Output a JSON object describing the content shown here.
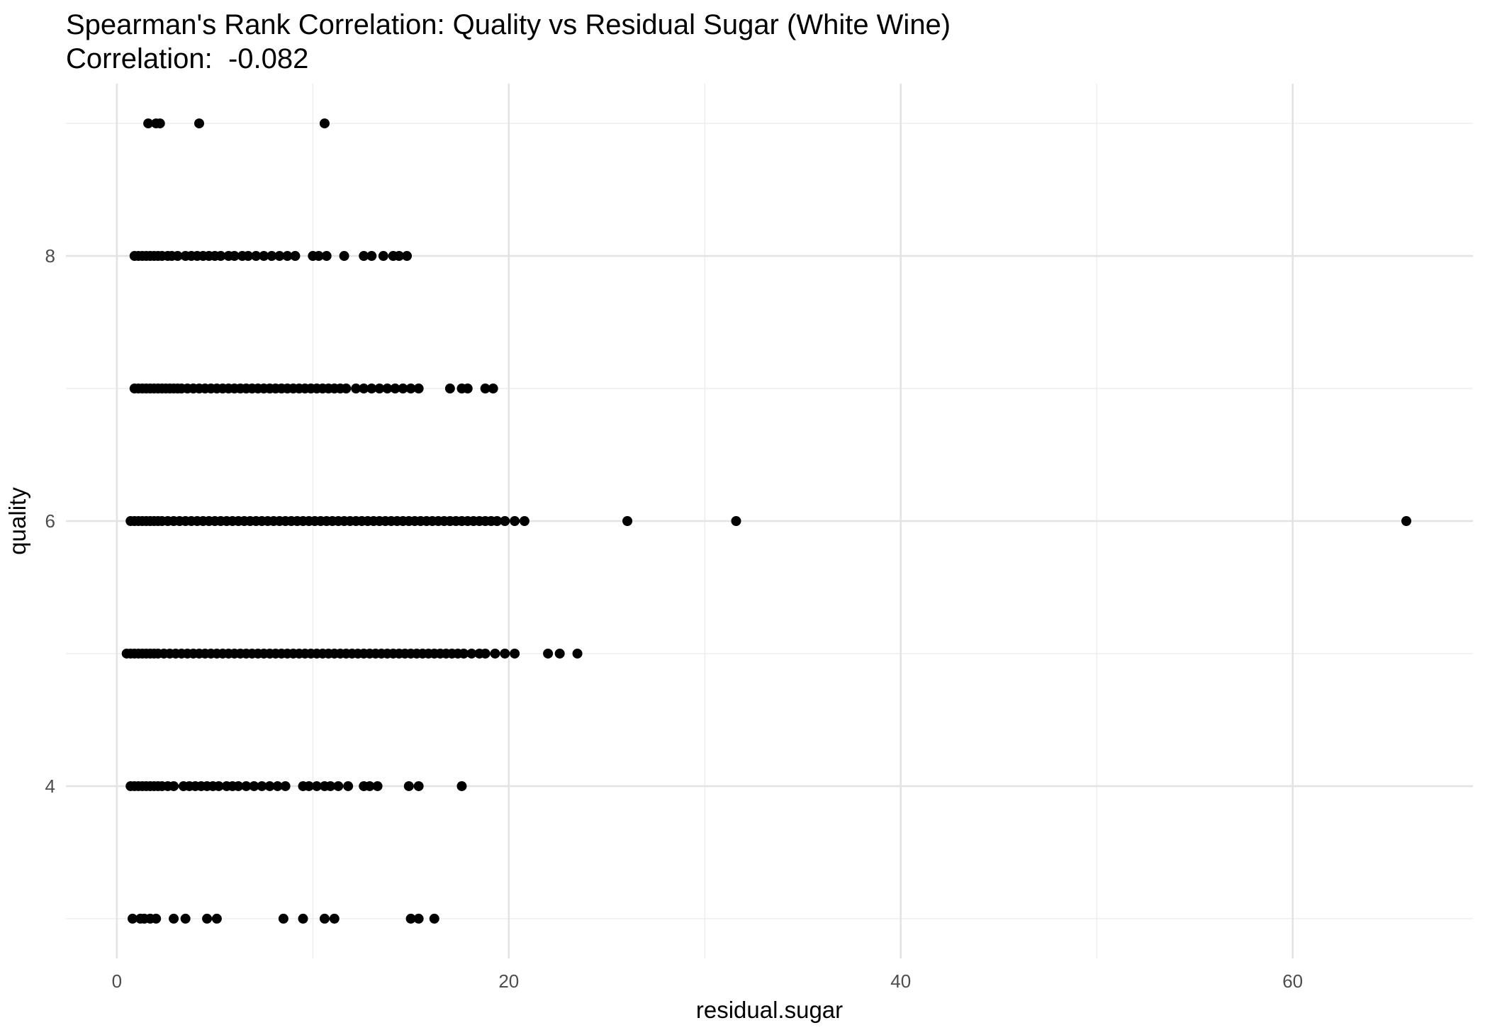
{
  "chart_data": {
    "type": "scatter",
    "title": "Spearman's Rank Correlation: Quality vs Residual Sugar (White Wine)",
    "subtitle": "Correlation:  -0.082",
    "xlabel": "residual.sugar",
    "ylabel": "quality",
    "xlim": [
      -2.6,
      69.2
    ],
    "ylim": [
      2.7,
      9.3
    ],
    "x_ticks": [
      0,
      20,
      40,
      60
    ],
    "y_ticks": [
      4,
      6,
      8
    ],
    "x_minor_ticks": [
      10,
      30,
      50
    ],
    "y_minor_ticks": [
      3,
      5,
      7,
      9
    ],
    "grid": true,
    "point_color": "#000000",
    "series": [
      {
        "points": [
          [
            1.6,
            9
          ],
          [
            2.0,
            9
          ],
          [
            2.2,
            9
          ],
          [
            4.2,
            9
          ],
          [
            10.6,
            9
          ],
          [
            0.9,
            8
          ],
          [
            1.1,
            8
          ],
          [
            1.3,
            8
          ],
          [
            1.5,
            8
          ],
          [
            1.7,
            8
          ],
          [
            1.9,
            8
          ],
          [
            2.1,
            8
          ],
          [
            2.3,
            8
          ],
          [
            2.6,
            8
          ],
          [
            2.8,
            8
          ],
          [
            3.1,
            8
          ],
          [
            3.5,
            8
          ],
          [
            3.8,
            8
          ],
          [
            4.1,
            8
          ],
          [
            4.4,
            8
          ],
          [
            4.7,
            8
          ],
          [
            5.0,
            8
          ],
          [
            5.3,
            8
          ],
          [
            5.7,
            8
          ],
          [
            6.0,
            8
          ],
          [
            6.4,
            8
          ],
          [
            6.7,
            8
          ],
          [
            7.1,
            8
          ],
          [
            7.5,
            8
          ],
          [
            7.9,
            8
          ],
          [
            8.3,
            8
          ],
          [
            8.7,
            8
          ],
          [
            9.1,
            8
          ],
          [
            10.0,
            8
          ],
          [
            10.3,
            8
          ],
          [
            10.7,
            8
          ],
          [
            11.6,
            8
          ],
          [
            12.6,
            8
          ],
          [
            13.0,
            8
          ],
          [
            13.6,
            8
          ],
          [
            14.1,
            8
          ],
          [
            14.4,
            8
          ],
          [
            14.8,
            8
          ],
          [
            0.9,
            7
          ],
          [
            1.1,
            7
          ],
          [
            1.3,
            7
          ],
          [
            1.5,
            7
          ],
          [
            1.7,
            7
          ],
          [
            1.9,
            7
          ],
          [
            2.1,
            7
          ],
          [
            2.3,
            7
          ],
          [
            2.5,
            7
          ],
          [
            2.7,
            7
          ],
          [
            2.9,
            7
          ],
          [
            3.1,
            7
          ],
          [
            3.3,
            7
          ],
          [
            3.6,
            7
          ],
          [
            3.9,
            7
          ],
          [
            4.2,
            7
          ],
          [
            4.5,
            7
          ],
          [
            4.8,
            7
          ],
          [
            5.1,
            7
          ],
          [
            5.4,
            7
          ],
          [
            5.7,
            7
          ],
          [
            6.0,
            7
          ],
          [
            6.3,
            7
          ],
          [
            6.6,
            7
          ],
          [
            6.9,
            7
          ],
          [
            7.2,
            7
          ],
          [
            7.5,
            7
          ],
          [
            7.8,
            7
          ],
          [
            8.1,
            7
          ],
          [
            8.4,
            7
          ],
          [
            8.7,
            7
          ],
          [
            9.0,
            7
          ],
          [
            9.3,
            7
          ],
          [
            9.6,
            7
          ],
          [
            9.9,
            7
          ],
          [
            10.2,
            7
          ],
          [
            10.5,
            7
          ],
          [
            10.8,
            7
          ],
          [
            11.1,
            7
          ],
          [
            11.4,
            7
          ],
          [
            11.7,
            7
          ],
          [
            12.2,
            7
          ],
          [
            12.6,
            7
          ],
          [
            13.0,
            7
          ],
          [
            13.4,
            7
          ],
          [
            13.8,
            7
          ],
          [
            14.2,
            7
          ],
          [
            14.6,
            7
          ],
          [
            15.0,
            7
          ],
          [
            15.4,
            7
          ],
          [
            17.0,
            7
          ],
          [
            17.6,
            7
          ],
          [
            17.9,
            7
          ],
          [
            18.8,
            7
          ],
          [
            19.2,
            7
          ],
          [
            0.7,
            6
          ],
          [
            0.9,
            6
          ],
          [
            1.1,
            6
          ],
          [
            1.3,
            6
          ],
          [
            1.5,
            6
          ],
          [
            1.7,
            6
          ],
          [
            1.9,
            6
          ],
          [
            2.1,
            6
          ],
          [
            2.3,
            6
          ],
          [
            2.6,
            6
          ],
          [
            2.9,
            6
          ],
          [
            3.2,
            6
          ],
          [
            3.5,
            6
          ],
          [
            3.8,
            6
          ],
          [
            4.1,
            6
          ],
          [
            4.4,
            6
          ],
          [
            4.7,
            6
          ],
          [
            5.0,
            6
          ],
          [
            5.3,
            6
          ],
          [
            5.6,
            6
          ],
          [
            5.9,
            6
          ],
          [
            6.2,
            6
          ],
          [
            6.5,
            6
          ],
          [
            6.8,
            6
          ],
          [
            7.1,
            6
          ],
          [
            7.4,
            6
          ],
          [
            7.7,
            6
          ],
          [
            8.0,
            6
          ],
          [
            8.3,
            6
          ],
          [
            8.6,
            6
          ],
          [
            8.9,
            6
          ],
          [
            9.2,
            6
          ],
          [
            9.5,
            6
          ],
          [
            9.8,
            6
          ],
          [
            10.1,
            6
          ],
          [
            10.4,
            6
          ],
          [
            10.7,
            6
          ],
          [
            11.0,
            6
          ],
          [
            11.3,
            6
          ],
          [
            11.6,
            6
          ],
          [
            11.9,
            6
          ],
          [
            12.2,
            6
          ],
          [
            12.5,
            6
          ],
          [
            12.8,
            6
          ],
          [
            13.1,
            6
          ],
          [
            13.4,
            6
          ],
          [
            13.7,
            6
          ],
          [
            14.0,
            6
          ],
          [
            14.3,
            6
          ],
          [
            14.6,
            6
          ],
          [
            14.9,
            6
          ],
          [
            15.2,
            6
          ],
          [
            15.5,
            6
          ],
          [
            15.8,
            6
          ],
          [
            16.1,
            6
          ],
          [
            16.4,
            6
          ],
          [
            16.7,
            6
          ],
          [
            17.0,
            6
          ],
          [
            17.3,
            6
          ],
          [
            17.6,
            6
          ],
          [
            17.9,
            6
          ],
          [
            18.2,
            6
          ],
          [
            18.5,
            6
          ],
          [
            18.8,
            6
          ],
          [
            19.1,
            6
          ],
          [
            19.4,
            6
          ],
          [
            19.8,
            6
          ],
          [
            20.3,
            6
          ],
          [
            20.8,
            6
          ],
          [
            26.05,
            6
          ],
          [
            31.6,
            6
          ],
          [
            65.8,
            6
          ],
          [
            0.5,
            5
          ],
          [
            0.7,
            5
          ],
          [
            0.9,
            5
          ],
          [
            1.1,
            5
          ],
          [
            1.3,
            5
          ],
          [
            1.5,
            5
          ],
          [
            1.7,
            5
          ],
          [
            1.9,
            5
          ],
          [
            2.1,
            5
          ],
          [
            2.4,
            5
          ],
          [
            2.7,
            5
          ],
          [
            3.0,
            5
          ],
          [
            3.3,
            5
          ],
          [
            3.6,
            5
          ],
          [
            3.9,
            5
          ],
          [
            4.2,
            5
          ],
          [
            4.5,
            5
          ],
          [
            4.8,
            5
          ],
          [
            5.1,
            5
          ],
          [
            5.4,
            5
          ],
          [
            5.7,
            5
          ],
          [
            6.0,
            5
          ],
          [
            6.3,
            5
          ],
          [
            6.6,
            5
          ],
          [
            6.9,
            5
          ],
          [
            7.2,
            5
          ],
          [
            7.5,
            5
          ],
          [
            7.8,
            5
          ],
          [
            8.1,
            5
          ],
          [
            8.4,
            5
          ],
          [
            8.7,
            5
          ],
          [
            9.0,
            5
          ],
          [
            9.3,
            5
          ],
          [
            9.6,
            5
          ],
          [
            9.9,
            5
          ],
          [
            10.2,
            5
          ],
          [
            10.5,
            5
          ],
          [
            10.8,
            5
          ],
          [
            11.1,
            5
          ],
          [
            11.4,
            5
          ],
          [
            11.7,
            5
          ],
          [
            12.0,
            5
          ],
          [
            12.3,
            5
          ],
          [
            12.6,
            5
          ],
          [
            12.9,
            5
          ],
          [
            13.2,
            5
          ],
          [
            13.5,
            5
          ],
          [
            13.8,
            5
          ],
          [
            14.1,
            5
          ],
          [
            14.4,
            5
          ],
          [
            14.7,
            5
          ],
          [
            15.0,
            5
          ],
          [
            15.3,
            5
          ],
          [
            15.6,
            5
          ],
          [
            15.9,
            5
          ],
          [
            16.2,
            5
          ],
          [
            16.5,
            5
          ],
          [
            16.8,
            5
          ],
          [
            17.1,
            5
          ],
          [
            17.4,
            5
          ],
          [
            17.7,
            5
          ],
          [
            18.1,
            5
          ],
          [
            18.5,
            5
          ],
          [
            18.8,
            5
          ],
          [
            19.3,
            5
          ],
          [
            19.8,
            5
          ],
          [
            20.3,
            5
          ],
          [
            22.0,
            5
          ],
          [
            22.6,
            5
          ],
          [
            23.5,
            5
          ],
          [
            0.7,
            4
          ],
          [
            0.9,
            4
          ],
          [
            1.1,
            4
          ],
          [
            1.3,
            4
          ],
          [
            1.5,
            4
          ],
          [
            1.7,
            4
          ],
          [
            1.9,
            4
          ],
          [
            2.1,
            4
          ],
          [
            2.3,
            4
          ],
          [
            2.6,
            4
          ],
          [
            2.9,
            4
          ],
          [
            3.4,
            4
          ],
          [
            3.7,
            4
          ],
          [
            4.0,
            4
          ],
          [
            4.3,
            4
          ],
          [
            4.6,
            4
          ],
          [
            4.9,
            4
          ],
          [
            5.2,
            4
          ],
          [
            5.6,
            4
          ],
          [
            5.9,
            4
          ],
          [
            6.2,
            4
          ],
          [
            6.6,
            4
          ],
          [
            7.0,
            4
          ],
          [
            7.4,
            4
          ],
          [
            7.8,
            4
          ],
          [
            8.2,
            4
          ],
          [
            8.6,
            4
          ],
          [
            9.5,
            4
          ],
          [
            9.8,
            4
          ],
          [
            10.2,
            4
          ],
          [
            10.6,
            4
          ],
          [
            10.9,
            4
          ],
          [
            11.3,
            4
          ],
          [
            11.8,
            4
          ],
          [
            12.6,
            4
          ],
          [
            12.9,
            4
          ],
          [
            13.3,
            4
          ],
          [
            14.9,
            4
          ],
          [
            15.4,
            4
          ],
          [
            17.6,
            4
          ],
          [
            0.8,
            3
          ],
          [
            1.2,
            3
          ],
          [
            1.4,
            3
          ],
          [
            1.7,
            3
          ],
          [
            2.0,
            3
          ],
          [
            2.9,
            3
          ],
          [
            3.5,
            3
          ],
          [
            4.6,
            3
          ],
          [
            5.1,
            3
          ],
          [
            8.5,
            3
          ],
          [
            9.5,
            3
          ],
          [
            10.6,
            3
          ],
          [
            11.1,
            3
          ],
          [
            15.0,
            3
          ],
          [
            15.4,
            3
          ],
          [
            16.2,
            3
          ]
        ]
      }
    ]
  }
}
